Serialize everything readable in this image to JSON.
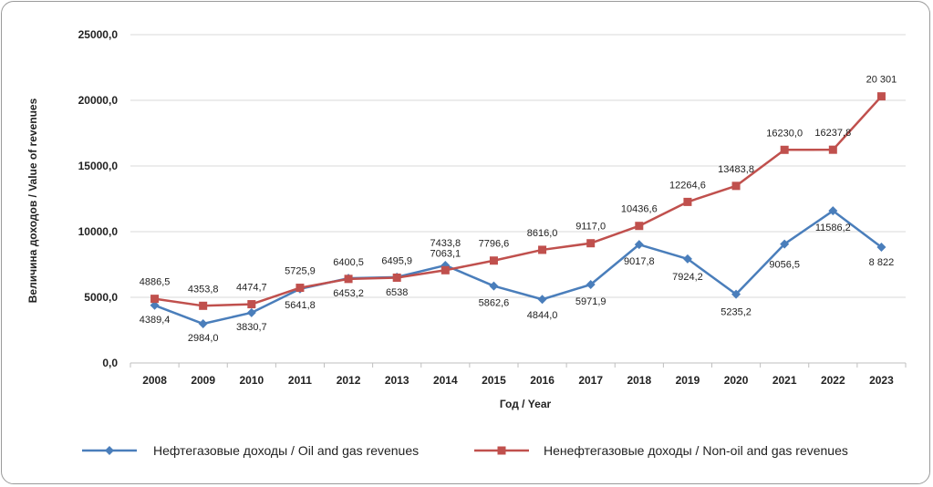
{
  "chart_data": {
    "type": "line",
    "title": "",
    "xlabel": "Год / Year",
    "ylabel": "Величина доходов / Value of revenues",
    "ylim": [
      0,
      25000
    ],
    "yticks": [
      "0,0",
      "5000,0",
      "10000,0",
      "15000,0",
      "20000,0",
      "25000,0"
    ],
    "ytick_values": [
      0,
      5000,
      10000,
      15000,
      20000,
      25000
    ],
    "grid": "horizontal",
    "legend_position": "bottom",
    "categories": [
      "2008",
      "2009",
      "2010",
      "2011",
      "2012",
      "2013",
      "2014",
      "2015",
      "2016",
      "2017",
      "2018",
      "2019",
      "2020",
      "2021",
      "2022",
      "2023"
    ],
    "series": [
      {
        "name": "Нефтегазовые доходы / Oil and gas revenues",
        "color": "#4a7ebb",
        "marker": "diamond",
        "values": [
          4389.4,
          2984.0,
          3830.7,
          5641.8,
          6453.2,
          6538,
          7433.8,
          5862.6,
          4844.0,
          5971.9,
          9017.8,
          7924.2,
          5235.2,
          9056.5,
          11586.2,
          8822
        ],
        "labels": [
          "4389,4",
          "2984,0",
          "3830,7",
          "5641,8",
          "6453,2",
          "6538",
          "7433,8",
          "5862,6",
          "4844,0",
          "5971,9",
          "9017,8",
          "7924,2",
          "5235,2",
          "9056,5",
          "11586,2",
          "8 822"
        ]
      },
      {
        "name": "Ненефтегазовые доходы / Non-oil and gas revenues",
        "color": "#c0504d",
        "marker": "square",
        "values": [
          4886.5,
          4353.8,
          4474.7,
          5725.9,
          6400.5,
          6495.9,
          7063.1,
          7796.6,
          8616.0,
          9117.0,
          10436.6,
          12264.6,
          13483.8,
          16230.0,
          16237.8,
          20301
        ],
        "labels": [
          "4886,5",
          "4353,8",
          "4474,7",
          "5725,9",
          "6400,5",
          "6495,9",
          "7063,1",
          "7796,6",
          "8616,0",
          "9117,0",
          "10436,6",
          "12264,6",
          "13483,8",
          "16230,0",
          "16237,8",
          "20 301"
        ]
      }
    ]
  }
}
